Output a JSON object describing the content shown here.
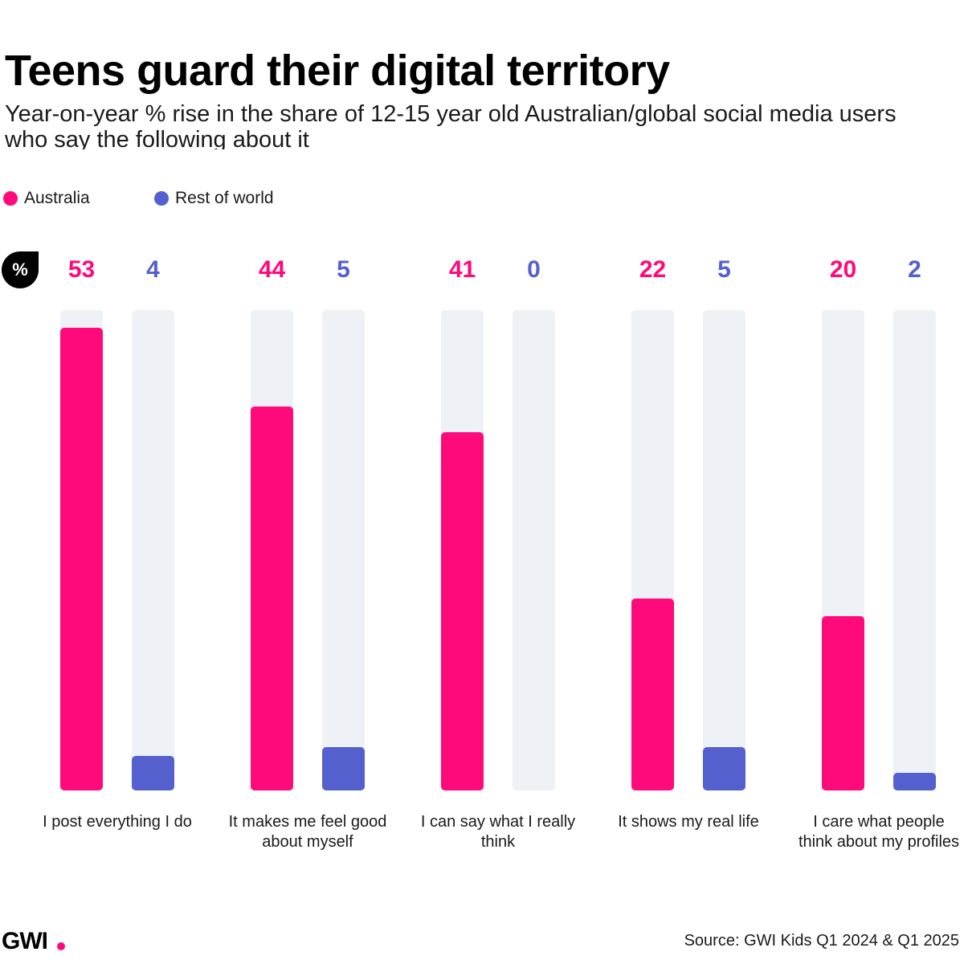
{
  "header": {
    "title": "Teens guard their digital territory",
    "subtitle": "Year-on-year % rise in the share of 12-15 year old Australian/global social media users who say the following about it"
  },
  "legend": [
    {
      "label": "Australia",
      "color": "#ff0a7a"
    },
    {
      "label": "Rest of world",
      "color": "#5560cf"
    }
  ],
  "unit_badge": "%",
  "colors": {
    "track": "#eef1f6",
    "australia": "#ff0a7a",
    "rest_of_world": "#5560cf"
  },
  "chart_data": {
    "type": "bar",
    "categories": [
      "I post everything I do",
      "It makes me feel good about myself",
      "I can say what I really think",
      "It shows my real life",
      "I care what people think about my profiles"
    ],
    "series": [
      {
        "name": "Australia",
        "values": [
          53,
          44,
          41,
          22,
          20
        ]
      },
      {
        "name": "Rest of world",
        "values": [
          4,
          5,
          0,
          5,
          2
        ]
      }
    ],
    "ylim": [
      0,
      55
    ],
    "grid": false,
    "legend_position": "top-left"
  },
  "footer": {
    "logo": "GWI",
    "source": "Source: GWI Kids Q1 2024 & Q1 2025"
  }
}
